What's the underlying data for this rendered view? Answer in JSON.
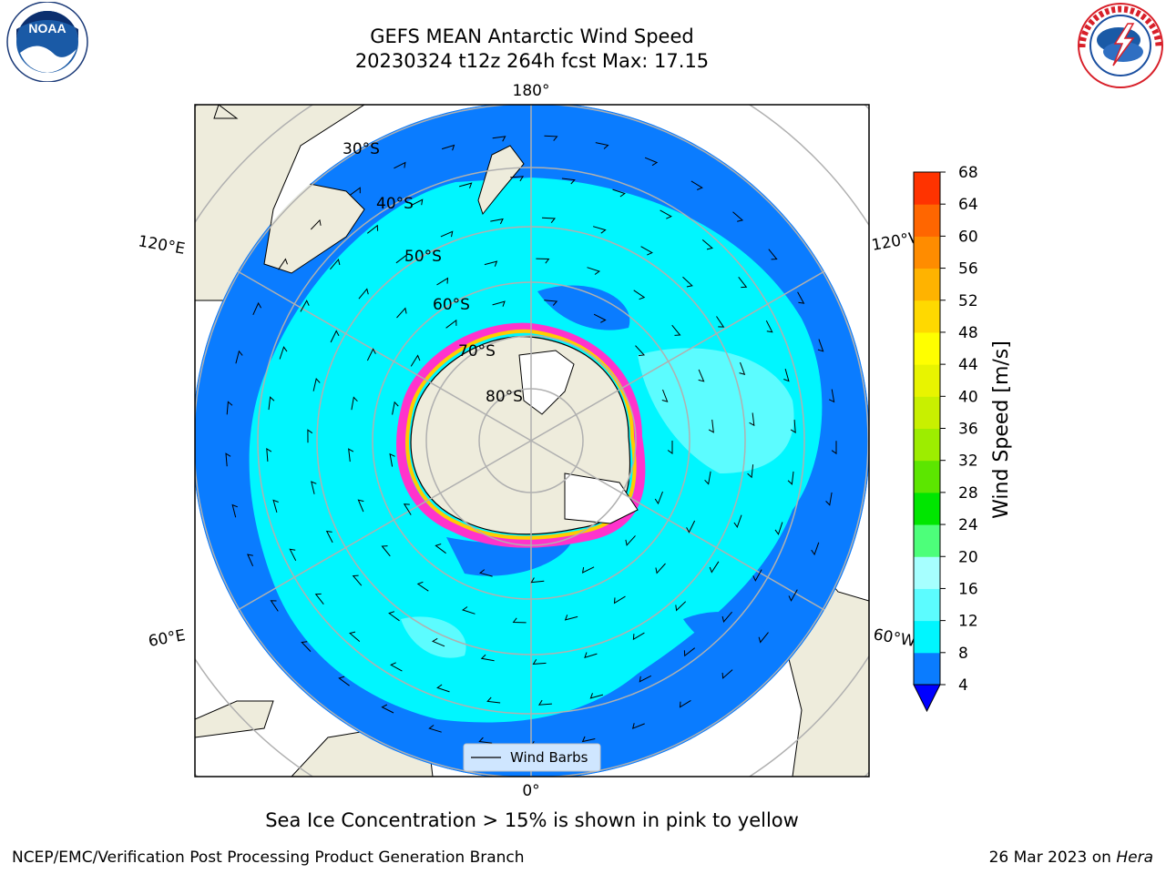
{
  "title": {
    "line1": "GEFS MEAN Antarctic Wind Speed",
    "line2": "20230324 t12z 264h fcst   Max: 17.15"
  },
  "map": {
    "projection": "south-polar-stereographic",
    "latitude_labels": [
      "30°S",
      "40°S",
      "50°S",
      "60°S",
      "70°S",
      "80°S"
    ],
    "longitude_labels": {
      "top": "180°",
      "bottom": "0°",
      "upper_left": "120°E",
      "upper_right": "120°W",
      "lower_left": "60°E",
      "lower_right": "60°W"
    },
    "colors": {
      "land": "#eeecdc",
      "ocean_4_8": "#0a7cff",
      "ocean_8_12": "#00f6ff",
      "ocean_12_16": "#5cfcff",
      "grid": "#b0b0b0",
      "sea_ice": [
        "#ff33cc",
        "#ffcc00",
        "#ffff66"
      ]
    },
    "legend": {
      "label": "Wind Barbs"
    }
  },
  "colorbar": {
    "label": "Wind Speed [m/s]",
    "ticks": [
      "4",
      "8",
      "12",
      "16",
      "20",
      "24",
      "28",
      "32",
      "36",
      "40",
      "44",
      "48",
      "52",
      "56",
      "60",
      "64",
      "68"
    ],
    "colors": [
      "#0a7cff",
      "#00f6ff",
      "#5cfcff",
      "#a6ffff",
      "#4dff7a",
      "#00e600",
      "#5ce600",
      "#9ded00",
      "#c8f000",
      "#e8f400",
      "#ffff00",
      "#ffd900",
      "#ffb300",
      "#ff8c00",
      "#ff6600",
      "#ff3300",
      "#ff0000"
    ],
    "extend_below_color": "#0000ff"
  },
  "caption": "Sea Ice Concentration > 15% is shown in pink to yellow",
  "footer": {
    "left": "NCEP/EMC/Verification Post Processing Product Generation Branch",
    "right_text": "26 Mar 2023 on ",
    "right_italic": "Hera"
  },
  "logos": {
    "left": "NOAA",
    "right_name": "noaa-logo",
    "right_logo": "national-weather-service-logo"
  }
}
